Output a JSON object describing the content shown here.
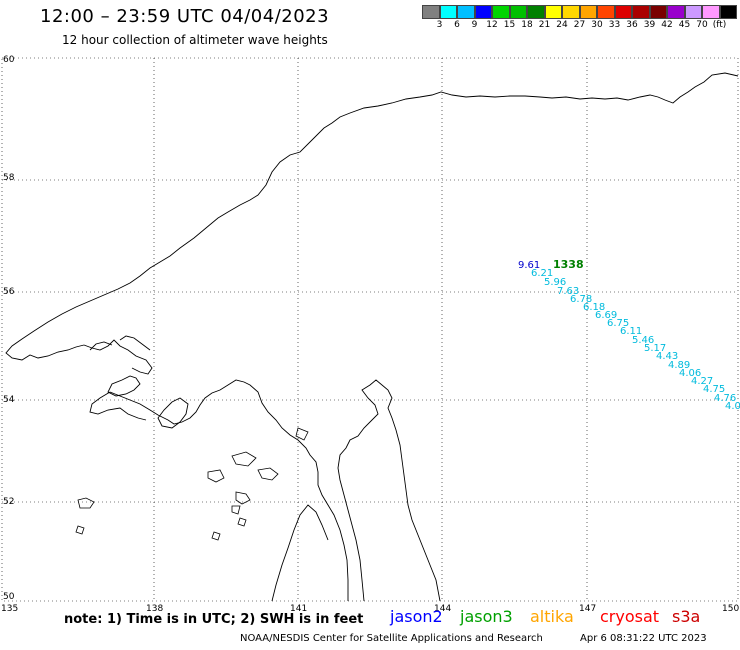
{
  "header": {
    "title": "12:00 – 23:59 UTC 04/04/2023",
    "subtitle": "12 hour collection of altimeter wave heights"
  },
  "color_scale": {
    "colors": [
      "#808080",
      "#00ffff",
      "#00bfff",
      "#0000ff",
      "#00d500",
      "#00c000",
      "#008000",
      "#ffff00",
      "#ffd700",
      "#ffa500",
      "#ff4500",
      "#dd0000",
      "#aa0000",
      "#7a0000",
      "#9900cc",
      "#cc99ff",
      "#ff99ff",
      "#000000"
    ],
    "labels": [
      "3",
      "6",
      "9",
      "12",
      "15",
      "18",
      "21",
      "24",
      "27",
      "30",
      "33",
      "36",
      "39",
      "42",
      "45",
      "70",
      "(ft)"
    ]
  },
  "axes": {
    "lat_labels": [
      "60",
      "58",
      "56",
      "54",
      "52",
      "50"
    ],
    "lon_labels": [
      "135",
      "138",
      "141",
      "144",
      "147",
      "150"
    ]
  },
  "observations": [
    {
      "text": "9.61",
      "color": "#0000cc"
    },
    {
      "text": "1338",
      "color": "#008000"
    },
    {
      "text": "6.21",
      "color": "#00bbdd"
    },
    {
      "text": "5.96",
      "color": "#00bbdd"
    },
    {
      "text": "7.63",
      "color": "#00bbdd"
    },
    {
      "text": "6.78",
      "color": "#00bbdd"
    },
    {
      "text": "6.18",
      "color": "#00bbdd"
    },
    {
      "text": "6.69",
      "color": "#00bbdd"
    },
    {
      "text": "6.75",
      "color": "#00bbdd"
    },
    {
      "text": "6.11",
      "color": "#00bbdd"
    },
    {
      "text": "5.46",
      "color": "#00bbdd"
    },
    {
      "text": "5.17",
      "color": "#00bbdd"
    },
    {
      "text": "4.43",
      "color": "#00bbdd"
    },
    {
      "text": "4.89",
      "color": "#00bbdd"
    },
    {
      "text": "4.06",
      "color": "#00bbdd"
    },
    {
      "text": "4.27",
      "color": "#00bbdd"
    },
    {
      "text": "4.75",
      "color": "#00bbdd"
    },
    {
      "text": "4.76",
      "color": "#00bbdd"
    },
    {
      "text": "4.0",
      "color": "#00bbdd"
    }
  ],
  "footer": {
    "note": "note: 1) Time is in UTC; 2) SWH is in feet",
    "satellites": [
      {
        "name": "jason2",
        "color": "#0000ff"
      },
      {
        "name": "jason3",
        "color": "#00a000"
      },
      {
        "name": "altika",
        "color": "#ffa500"
      },
      {
        "name": "cryosat",
        "color": "#ff0000"
      },
      {
        "name": "s3a",
        "color": "#cc0000"
      }
    ],
    "credit": "NOAA/NESDIS Center for Satellite Applications and Research",
    "timestamp": "Apr  6 08:31:22 UTC 2023"
  }
}
